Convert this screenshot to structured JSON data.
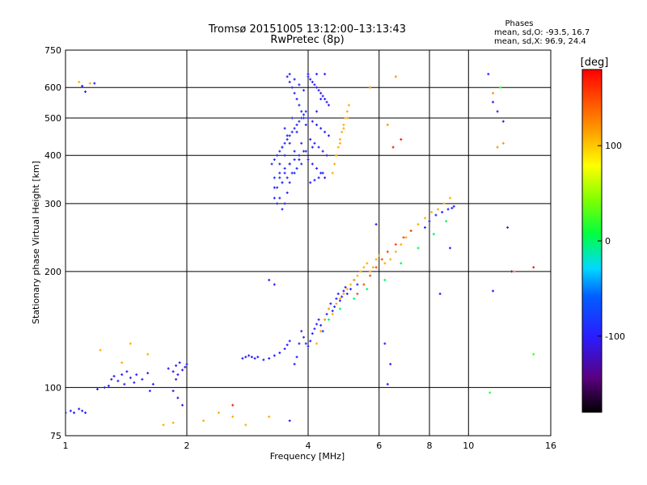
{
  "chart_data": {
    "type": "scatter",
    "title": "Tromsø 20151005 13:12:00–13:13:43",
    "subtitle": "RwPretec (8p)",
    "xlabel": "Frequency [MHz]",
    "ylabel": "Stationary phase Virtual Height [km]",
    "x_scale": "log",
    "y_scale": "log",
    "xlim": [
      1,
      16
    ],
    "ylim": [
      75,
      750
    ],
    "x_ticks": [
      1,
      2,
      4,
      6,
      8,
      10,
      16
    ],
    "x_tick_labels": [
      "1",
      "2",
      "4",
      "6",
      "8",
      "10",
      "16"
    ],
    "y_ticks": [
      75,
      100,
      200,
      300,
      400,
      500,
      600,
      750
    ],
    "y_tick_labels": [
      "75",
      "100",
      "200",
      "300",
      "400",
      "500",
      "600",
      "750"
    ],
    "grid": true,
    "stats": {
      "heading": "Phases",
      "line_o": "mean, sd,O: -93.5, 16.7",
      "line_x": "mean, sd,X:  96.9, 24.4"
    },
    "colorbar": {
      "label": "[deg]",
      "range": [
        -180,
        180
      ],
      "ticks": [
        100,
        0,
        -100
      ],
      "tick_labels": [
        "100",
        "0",
        "-100"
      ]
    },
    "point_groups": [
      {
        "phase": -95,
        "x": [
          3.55,
          3.6,
          3.65,
          3.7,
          3.75,
          3.8,
          3.85,
          3.9,
          3.95,
          3.6,
          3.7,
          3.8,
          3.9,
          3.65,
          3.75,
          3.85,
          3.95,
          3.5,
          3.55,
          3.6,
          3.7,
          3.8,
          3.45,
          3.5,
          3.6,
          3.7,
          3.4,
          3.5,
          3.6,
          3.4,
          3.45,
          3.55,
          3.3,
          3.4,
          3.5,
          3.3,
          3.35,
          3.45
        ],
        "y": [
          640,
          620,
          600,
          580,
          560,
          540,
          520,
          500,
          480,
          650,
          630,
          610,
          590,
          500,
          460,
          430,
          410,
          470,
          450,
          430,
          410,
          390,
          420,
          400,
          380,
          360,
          380,
          360,
          340,
          350,
          340,
          320,
          330,
          310,
          300,
          310,
          300,
          290
        ]
      },
      {
        "phase": -100,
        "x": [
          4.0,
          4.05,
          4.1,
          4.15,
          4.2,
          4.25,
          4.3,
          4.35,
          4.4,
          4.45,
          4.5,
          4.0,
          4.1,
          4.2,
          4.3,
          4.4,
          4.5,
          4.05,
          4.15,
          4.25,
          4.35,
          4.45,
          4.0,
          4.1,
          4.2,
          4.3,
          4.4,
          4.05,
          4.15,
          4.25,
          4.35,
          4.1,
          4.2,
          4.3,
          4.0,
          4.2,
          4.4
        ],
        "y": [
          640,
          630,
          620,
          610,
          600,
          590,
          580,
          570,
          560,
          550,
          540,
          500,
          490,
          480,
          470,
          460,
          450,
          440,
          430,
          420,
          410,
          400,
          390,
          380,
          370,
          360,
          350,
          340,
          345,
          350,
          360,
          420,
          520,
          560,
          650,
          650,
          650
        ]
      },
      {
        "phase": -90,
        "x": [
          3.25,
          3.3,
          3.35,
          3.4,
          3.45,
          3.5,
          3.55,
          3.6,
          3.65,
          3.7,
          3.75,
          3.8,
          3.85,
          3.9,
          3.95,
          3.3,
          3.4,
          3.5,
          3.6,
          3.7,
          3.8,
          3.9,
          3.35,
          3.45,
          3.55,
          3.65,
          3.75,
          3.85
        ],
        "y": [
          380,
          390,
          400,
          410,
          420,
          430,
          440,
          450,
          460,
          470,
          480,
          490,
          500,
          510,
          520,
          350,
          360,
          370,
          380,
          390,
          400,
          410,
          330,
          340,
          350,
          360,
          370,
          380
        ]
      },
      {
        "phase": 110,
        "x": [
          4.6,
          4.65,
          4.7,
          4.75,
          4.8,
          4.85,
          4.9,
          4.95,
          5.0,
          5.05,
          4.7,
          4.8,
          4.9,
          5.0
        ],
        "y": [
          360,
          380,
          400,
          420,
          440,
          460,
          480,
          500,
          520,
          540,
          400,
          430,
          470,
          500
        ]
      },
      {
        "phase": -100,
        "x": [
          2.75,
          2.8,
          2.85,
          2.9,
          2.95,
          3.0,
          3.1,
          3.2,
          3.3,
          3.4,
          3.5,
          3.55,
          3.6,
          3.2,
          3.3
        ],
        "y": [
          119,
          120,
          121,
          120,
          119,
          120,
          118,
          119,
          121,
          123,
          126,
          129,
          132,
          190,
          185
        ]
      },
      {
        "phase": -95,
        "x": [
          3.7,
          3.75,
          3.8,
          3.85,
          3.9,
          3.95,
          4.0,
          4.05,
          4.1,
          4.15,
          4.2,
          4.25,
          4.3,
          4.35,
          4.4,
          4.45,
          4.5,
          4.55,
          4.6,
          4.65,
          4.7,
          4.75,
          4.8,
          4.85,
          4.9,
          4.95,
          5.0,
          5.1,
          5.2,
          5.3
        ],
        "y": [
          115,
          120,
          130,
          140,
          135,
          130,
          128,
          132,
          138,
          142,
          146,
          150,
          145,
          140,
          150,
          155,
          160,
          165,
          158,
          162,
          170,
          175,
          168,
          172,
          178,
          182,
          175,
          180,
          190,
          185
        ]
      },
      {
        "phase": 110,
        "x": [
          4.2,
          4.3,
          4.4,
          4.5,
          4.6,
          4.7,
          4.8,
          4.9,
          5.0,
          5.1,
          5.2,
          5.3,
          5.4,
          5.5,
          5.6,
          5.7,
          5.8,
          5.9,
          6.0,
          6.2,
          6.4,
          6.6,
          6.8,
          7.0,
          7.2,
          7.5,
          7.8,
          8.1,
          8.4,
          8.7,
          9.0
        ],
        "y": [
          130,
          140,
          150,
          160,
          155,
          165,
          170,
          175,
          180,
          185,
          190,
          195,
          200,
          205,
          210,
          200,
          205,
          215,
          220,
          210,
          215,
          225,
          235,
          245,
          255,
          265,
          275,
          285,
          290,
          300,
          310
        ]
      },
      {
        "phase": 150,
        "x": [
          5.3,
          5.5,
          5.7,
          5.9,
          6.1,
          6.3,
          6.6,
          6.9,
          7.2
        ],
        "y": [
          175,
          185,
          195,
          205,
          215,
          225,
          235,
          245,
          255
        ]
      },
      {
        "phase": 0,
        "x": [
          4.5,
          4.8,
          5.2,
          5.6,
          6.2,
          6.8,
          7.5,
          8.2,
          8.8
        ],
        "y": [
          150,
          160,
          170,
          180,
          190,
          210,
          230,
          250,
          270
        ]
      },
      {
        "phase": -100,
        "x": [
          7.8,
          8.0,
          8.3,
          8.6,
          8.9,
          9.1,
          9.2
        ],
        "y": [
          260,
          270,
          280,
          285,
          290,
          292,
          295
        ]
      },
      {
        "phase": -100,
        "x": [
          1.0,
          1.03,
          1.05,
          1.08,
          1.1,
          1.12,
          1.2,
          1.25,
          1.28,
          1.3,
          1.32,
          1.35,
          1.38,
          1.4,
          1.42,
          1.45,
          1.48,
          1.5,
          1.55,
          1.6,
          1.62,
          1.65
        ],
        "y": [
          86,
          87,
          86,
          88,
          87,
          86,
          99,
          100,
          101,
          105,
          107,
          104,
          108,
          102,
          110,
          106,
          103,
          108,
          105,
          109,
          98,
          102
        ]
      },
      {
        "phase": -105,
        "x": [
          1.8,
          1.85,
          1.88,
          1.9,
          1.92,
          1.95,
          1.98,
          2.0,
          1.85,
          1.9,
          1.95,
          1.88
        ],
        "y": [
          112,
          110,
          114,
          108,
          116,
          111,
          113,
          115,
          98,
          94,
          90,
          105
        ]
      },
      {
        "phase": 110,
        "x": [
          1.08,
          1.1,
          1.15,
          1.22,
          1.38,
          1.45,
          1.6,
          1.75,
          1.85,
          2.2,
          2.4,
          2.6,
          2.8,
          3.2
        ],
        "y": [
          620,
          605,
          615,
          125,
          116,
          130,
          122,
          80,
          81,
          82,
          86,
          84,
          80,
          84
        ]
      },
      {
        "phase": -100,
        "x": [
          1.1,
          1.12,
          1.18,
          11.2,
          11.5,
          11.8,
          12.2,
          12.5,
          12.8,
          11.5
        ],
        "y": [
          605,
          585,
          615,
          650,
          550,
          520,
          490,
          260,
          200,
          178
        ]
      },
      {
        "phase": 120,
        "x": [
          11.5,
          11.8,
          12.2,
          13.0,
          6.6,
          6.3,
          5.7
        ],
        "y": [
          580,
          420,
          430,
          200,
          640,
          480,
          600
        ]
      },
      {
        "phase": 170,
        "x": [
          14.5,
          6.5,
          2.6,
          6.8
        ],
        "y": [
          205,
          420,
          90,
          440
        ]
      },
      {
        "phase": 20,
        "x": [
          11.3,
          14.5,
          12.0
        ],
        "y": [
          97,
          122,
          600
        ]
      },
      {
        "phase": -100,
        "x": [
          6.3,
          6.4,
          5.9,
          9.0,
          8.5,
          3.6,
          6.2
        ],
        "y": [
          102,
          115,
          265,
          230,
          175,
          82,
          130
        ]
      }
    ]
  }
}
